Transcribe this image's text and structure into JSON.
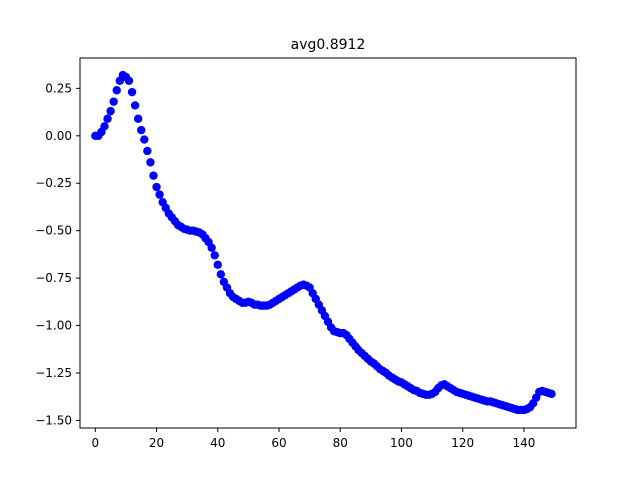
{
  "chart_data": {
    "type": "scatter",
    "title": "avg0.8912",
    "xlabel": "",
    "ylabel": "",
    "xlim": [
      -5,
      157
    ],
    "ylim": [
      -1.54,
      0.41
    ],
    "xticks": [
      0,
      20,
      40,
      60,
      80,
      100,
      120,
      140
    ],
    "yticks": [
      0.25,
      0.0,
      -0.25,
      -0.5,
      -0.75,
      -1.0,
      -1.25,
      -1.5
    ],
    "xtick_labels": [
      "0",
      "20",
      "40",
      "60",
      "80",
      "100",
      "120",
      "140"
    ],
    "ytick_labels": [
      "0.25",
      "0.00",
      "−0.25",
      "−0.50",
      "−0.75",
      "−1.00",
      "−1.25",
      "−1.50"
    ],
    "grid": false,
    "marker_color": "#0000ff",
    "series": [
      {
        "x": [
          0,
          1,
          2,
          3,
          4,
          5,
          6,
          7,
          8,
          9,
          10,
          11,
          12,
          13,
          14,
          15,
          16,
          17,
          18,
          19,
          20,
          21,
          22,
          23,
          24,
          25,
          26,
          27,
          28,
          29,
          30,
          31,
          32,
          33,
          34,
          35,
          36,
          37,
          38,
          39,
          40,
          41,
          42,
          43,
          44,
          45,
          46,
          47,
          48,
          49,
          50,
          51,
          52,
          53,
          54,
          55,
          56,
          57,
          58,
          59,
          60,
          61,
          62,
          63,
          64,
          65,
          66,
          67,
          68,
          69,
          70,
          71,
          72,
          73,
          74,
          75,
          76,
          77,
          78,
          79,
          80,
          81,
          82,
          83,
          84,
          85,
          86,
          87,
          88,
          89,
          90,
          91,
          92,
          93,
          94,
          95,
          96,
          97,
          98,
          99,
          100,
          101,
          102,
          103,
          104,
          105,
          106,
          107,
          108,
          109,
          110,
          111,
          112,
          113,
          114,
          115,
          116,
          117,
          118,
          119,
          120,
          121,
          122,
          123,
          124,
          125,
          126,
          127,
          128,
          129,
          130,
          131,
          132,
          133,
          134,
          135,
          136,
          137,
          138,
          139,
          140,
          141,
          142,
          143,
          144,
          145,
          146,
          147,
          148,
          149
        ],
        "y": [
          0.0,
          0.0,
          0.02,
          0.05,
          0.09,
          0.13,
          0.18,
          0.24,
          0.29,
          0.32,
          0.31,
          0.29,
          0.23,
          0.16,
          0.09,
          0.03,
          -0.02,
          -0.08,
          -0.14,
          -0.21,
          -0.27,
          -0.31,
          -0.35,
          -0.38,
          -0.41,
          -0.43,
          -0.45,
          -0.47,
          -0.48,
          -0.49,
          -0.495,
          -0.5,
          -0.5,
          -0.505,
          -0.51,
          -0.52,
          -0.54,
          -0.56,
          -0.59,
          -0.63,
          -0.68,
          -0.73,
          -0.77,
          -0.8,
          -0.83,
          -0.85,
          -0.86,
          -0.87,
          -0.88,
          -0.88,
          -0.875,
          -0.88,
          -0.89,
          -0.89,
          -0.895,
          -0.895,
          -0.895,
          -0.89,
          -0.88,
          -0.87,
          -0.86,
          -0.85,
          -0.84,
          -0.83,
          -0.82,
          -0.81,
          -0.8,
          -0.79,
          -0.785,
          -0.79,
          -0.8,
          -0.83,
          -0.86,
          -0.89,
          -0.92,
          -0.95,
          -0.98,
          -1.01,
          -1.03,
          -1.035,
          -1.04,
          -1.04,
          -1.05,
          -1.07,
          -1.09,
          -1.11,
          -1.13,
          -1.145,
          -1.16,
          -1.175,
          -1.19,
          -1.2,
          -1.215,
          -1.23,
          -1.24,
          -1.25,
          -1.265,
          -1.275,
          -1.285,
          -1.295,
          -1.3,
          -1.31,
          -1.32,
          -1.33,
          -1.34,
          -1.345,
          -1.355,
          -1.36,
          -1.365,
          -1.365,
          -1.36,
          -1.35,
          -1.33,
          -1.315,
          -1.31,
          -1.32,
          -1.33,
          -1.34,
          -1.35,
          -1.355,
          -1.36,
          -1.365,
          -1.37,
          -1.375,
          -1.38,
          -1.385,
          -1.39,
          -1.395,
          -1.4,
          -1.4,
          -1.405,
          -1.41,
          -1.415,
          -1.42,
          -1.425,
          -1.43,
          -1.435,
          -1.44,
          -1.445,
          -1.445,
          -1.445,
          -1.44,
          -1.43,
          -1.41,
          -1.38,
          -1.35,
          -1.345,
          -1.35,
          -1.355,
          -1.36
        ]
      }
    ]
  }
}
